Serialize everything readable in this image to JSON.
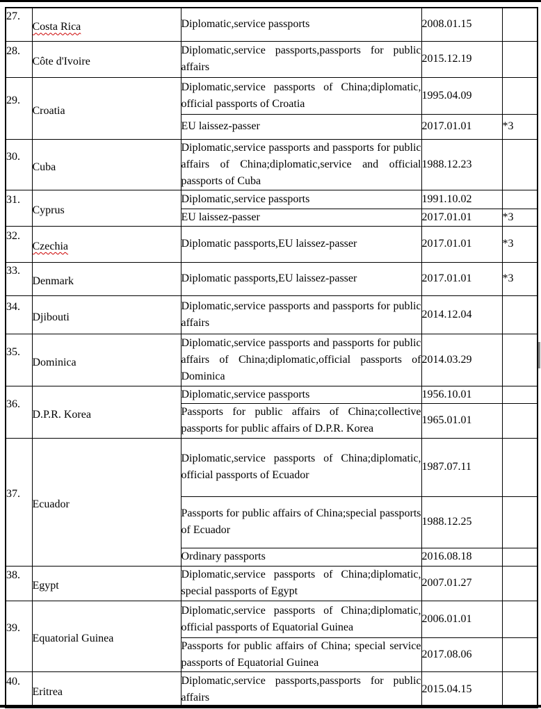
{
  "page": {
    "background_color": "#ffffff",
    "border_color": "#000000",
    "spellcheck_underline_color": "#cc0000",
    "scrollbar_fragment_color": "#8a8a8a"
  },
  "table": {
    "columns": [
      "number",
      "country",
      "passport_types",
      "effective_date",
      "note"
    ],
    "rows": [
      {
        "number": "27.",
        "country": "Costa Rica",
        "spellcheck_underline": true,
        "entries": [
          {
            "passports": "Diplomatic,service passports",
            "date": "2008.01.15",
            "note": ""
          }
        ]
      },
      {
        "number": "28.",
        "country": "Côte d'Ivoire",
        "spellcheck_underline": false,
        "entries": [
          {
            "passports": "Diplomatic,service passports,passports for public affairs",
            "date": "2015.12.19",
            "note": ""
          }
        ]
      },
      {
        "number": "29.",
        "country": "Croatia",
        "spellcheck_underline": false,
        "entries": [
          {
            "passports": "Diplomatic,service passports of China;diplomatic, official passports of Croatia",
            "date": "1995.04.09",
            "note": ""
          },
          {
            "passports": "EU laissez-passer",
            "date": "2017.01.01",
            "note": "*3"
          }
        ]
      },
      {
        "number": "30.",
        "country": "Cuba",
        "spellcheck_underline": false,
        "entries": [
          {
            "passports": "Diplomatic,service passports and passports for public affairs of China;diplomatic,service and official passports of Cuba",
            "date": "1988.12.23",
            "note": ""
          }
        ]
      },
      {
        "number": "31.",
        "country": "Cyprus",
        "spellcheck_underline": false,
        "entries": [
          {
            "passports": "Diplomatic,service passports",
            "date": "1991.10.02",
            "note": ""
          },
          {
            "passports": "EU laissez-passer",
            "date": "2017.01.01",
            "note": "*3"
          }
        ]
      },
      {
        "number": "32.",
        "country": "Czechia",
        "spellcheck_underline": true,
        "entries": [
          {
            "passports": "Diplomatic passports,EU laissez-passer",
            "date": "2017.01.01",
            "note": "*3"
          }
        ]
      },
      {
        "number": "33.",
        "country": "Denmark",
        "spellcheck_underline": false,
        "entries": [
          {
            "passports": "Diplomatic passports,EU laissez-passer",
            "date": "2017.01.01",
            "note": "*3"
          }
        ]
      },
      {
        "number": "34.",
        "country": "Djibouti",
        "spellcheck_underline": false,
        "entries": [
          {
            "passports": "Diplomatic,service passports and passports for public affairs",
            "date": "2014.12.04",
            "note": ""
          }
        ]
      },
      {
        "number": "35.",
        "country": "Dominica",
        "spellcheck_underline": false,
        "entries": [
          {
            "passports": "Diplomatic,service passports and passports for public affairs of China;diplomatic,official passports of Dominica",
            "date": "2014.03.29",
            "note": ""
          }
        ]
      },
      {
        "number": "36.",
        "country": "D.P.R. Korea",
        "spellcheck_underline": false,
        "entries": [
          {
            "passports": "Diplomatic,service passports",
            "date": "1956.10.01",
            "note": ""
          },
          {
            "passports": "Passports for public affairs of China;collective passports for public affairs of D.P.R. Korea",
            "date": "1965.01.01",
            "note": ""
          }
        ]
      },
      {
        "number": "37.",
        "country": "Ecuador",
        "spellcheck_underline": false,
        "entries": [
          {
            "passports": "Diplomatic,service passports of China;diplomatic, official passports of Ecuador",
            "date": "1987.07.11",
            "note": ""
          },
          {
            "passports": "Passports for public affairs of China;special passports of Ecuador",
            "date": "1988.12.25",
            "note": ""
          },
          {
            "passports": "Ordinary passports",
            "date": "2016.08.18",
            "note": ""
          }
        ]
      },
      {
        "number": "38.",
        "country": "Egypt",
        "spellcheck_underline": false,
        "entries": [
          {
            "passports": "Diplomatic,service passports of China;diplomatic, special passports of Egypt",
            "date": "2007.01.27",
            "note": ""
          }
        ]
      },
      {
        "number": "39.",
        "country": "Equatorial Guinea",
        "spellcheck_underline": false,
        "entries": [
          {
            "passports": "Diplomatic,service passports of China;diplomatic, official passports of Equatorial Guinea",
            "date": "2006.01.01",
            "note": ""
          },
          {
            "passports": "Passports for public affairs of China; special service passports of Equatorial Guinea",
            "date": "2017.08.06",
            "note": ""
          }
        ]
      },
      {
        "number": "40.",
        "country": "Eritrea",
        "spellcheck_underline": false,
        "entries": [
          {
            "passports": "Diplomatic,service passports,passports for public affairs",
            "date": "2015.04.15",
            "note": ""
          }
        ]
      }
    ]
  }
}
